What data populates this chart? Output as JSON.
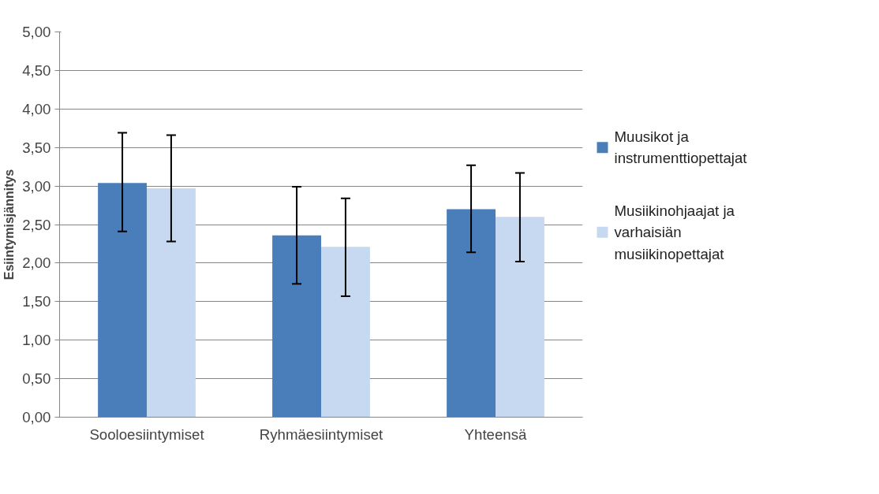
{
  "chart_data": {
    "type": "bar",
    "ylabel": "Esiintymisjännitys",
    "categories": [
      "Sooloesiintymiset",
      "Ryhmäesiintymiset",
      "Yhteensä"
    ],
    "series": [
      {
        "name": "Muusikot ja instrumenttiopettajat",
        "color": "#4a7ebb",
        "values": [
          3.04,
          2.36,
          2.7
        ],
        "errors": [
          [
            2.41,
            3.69
          ],
          [
            1.73,
            2.99
          ],
          [
            2.14,
            3.27
          ]
        ]
      },
      {
        "name": "Musiikinohjaajat ja varhaisiän musiikinopettajat",
        "color": "#c6d9f0",
        "values": [
          2.97,
          2.21,
          2.6
        ],
        "errors": [
          [
            2.28,
            3.66
          ],
          [
            1.57,
            2.84
          ],
          [
            2.02,
            3.17
          ]
        ]
      }
    ],
    "ylim": [
      0,
      5
    ],
    "yticks": [
      {
        "value": 0,
        "label": "0,00"
      },
      {
        "value": 0.5,
        "label": "0,50"
      },
      {
        "value": 1,
        "label": "1,00"
      },
      {
        "value": 1.5,
        "label": "1,50"
      },
      {
        "value": 2,
        "label": "2,00"
      },
      {
        "value": 2.5,
        "label": "2,50"
      },
      {
        "value": 3,
        "label": "3,00"
      },
      {
        "value": 3.5,
        "label": "3,50"
      },
      {
        "value": 4,
        "label": "4,00"
      },
      {
        "value": 4.5,
        "label": "4,50"
      },
      {
        "value": 5,
        "label": "5,00"
      }
    ],
    "grid": "y",
    "legend": "right"
  }
}
